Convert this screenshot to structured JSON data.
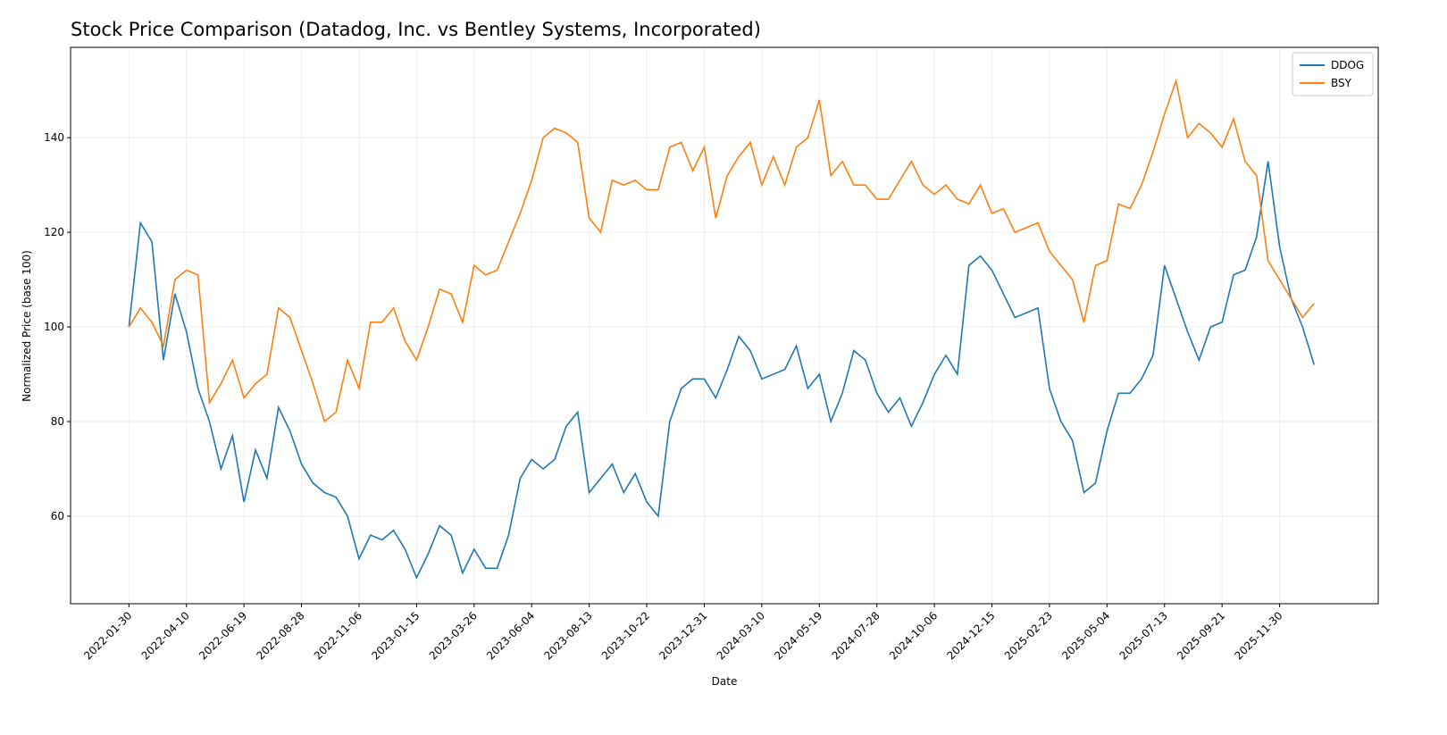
{
  "chart_data": {
    "type": "line",
    "title": "Stock Price Comparison (Datadog, Inc. vs Bentley Systems, Incorporated)",
    "x_label": "Date",
    "y_label": "Normalized Price (base 100)",
    "x": [
      "2022-01-30",
      "2022-02-13",
      "2022-02-27",
      "2022-03-13",
      "2022-03-27",
      "2022-04-10",
      "2022-04-24",
      "2022-05-08",
      "2022-05-22",
      "2022-06-05",
      "2022-06-19",
      "2022-07-03",
      "2022-07-17",
      "2022-07-31",
      "2022-08-14",
      "2022-08-28",
      "2022-09-11",
      "2022-09-25",
      "2022-10-09",
      "2022-10-23",
      "2022-11-06",
      "2022-11-20",
      "2022-12-04",
      "2022-12-18",
      "2023-01-01",
      "2023-01-15",
      "2023-01-29",
      "2023-02-12",
      "2023-02-26",
      "2023-03-12",
      "2023-03-26",
      "2023-04-09",
      "2023-04-23",
      "2023-05-07",
      "2023-05-21",
      "2023-06-04",
      "2023-06-18",
      "2023-07-02",
      "2023-07-16",
      "2023-07-30",
      "2023-08-13",
      "2023-08-27",
      "2023-09-10",
      "2023-09-24",
      "2023-10-08",
      "2023-10-22",
      "2023-11-05",
      "2023-11-19",
      "2023-12-03",
      "2023-12-17",
      "2023-12-31",
      "2024-01-14",
      "2024-01-28",
      "2024-02-11",
      "2024-02-25",
      "2024-03-10",
      "2024-03-24",
      "2024-04-07",
      "2024-04-21",
      "2024-05-05",
      "2024-05-19",
      "2024-06-02",
      "2024-06-16",
      "2024-06-30",
      "2024-07-14",
      "2024-07-28",
      "2024-08-11",
      "2024-08-25",
      "2024-09-08",
      "2024-09-22",
      "2024-10-06",
      "2024-10-20",
      "2024-11-03",
      "2024-11-17",
      "2024-12-01",
      "2024-12-15",
      "2024-12-29",
      "2025-01-12",
      "2025-01-26",
      "2025-02-09",
      "2025-02-23",
      "2025-03-09",
      "2025-03-23",
      "2025-04-06",
      "2025-04-20",
      "2025-05-04",
      "2025-05-18",
      "2025-06-01",
      "2025-06-15",
      "2025-06-29",
      "2025-07-13",
      "2025-07-27",
      "2025-08-10",
      "2025-08-24",
      "2025-09-07",
      "2025-09-21",
      "2025-10-05",
      "2025-10-19",
      "2025-11-02",
      "2025-11-16",
      "2025-11-30",
      "2025-12-14",
      "2025-12-28",
      "2026-01-11"
    ],
    "series": [
      {
        "name": "DDOG",
        "color": "#1f77b4",
        "values": [
          100,
          122,
          118,
          93,
          107,
          99,
          87,
          80,
          70,
          77,
          63,
          74,
          68,
          83,
          78,
          71,
          67,
          65,
          64,
          60,
          51,
          56,
          55,
          57,
          53,
          47,
          52,
          58,
          56,
          48,
          53,
          49,
          49,
          56,
          68,
          72,
          70,
          72,
          79,
          82,
          65,
          68,
          71,
          65,
          69,
          63,
          60,
          80,
          87,
          89,
          89,
          85,
          91,
          98,
          95,
          89,
          90,
          91,
          96,
          87,
          90,
          80,
          86,
          95,
          93,
          86,
          82,
          85,
          79,
          84,
          90,
          94,
          90,
          113,
          115,
          112,
          107,
          102,
          103,
          104,
          87,
          80,
          76,
          65,
          67,
          78,
          86,
          86,
          89,
          94,
          113,
          106,
          99,
          93,
          100,
          101,
          111,
          112,
          119,
          135,
          117,
          106,
          100,
          92
        ]
      },
      {
        "name": "BSY",
        "color": "#ff7f0e",
        "values": [
          100,
          104,
          101,
          96,
          110,
          112,
          111,
          84,
          88,
          93,
          85,
          88,
          90,
          104,
          102,
          95,
          88,
          80,
          82,
          93,
          87,
          101,
          101,
          104,
          97,
          93,
          100,
          108,
          107,
          101,
          113,
          111,
          112,
          118,
          124,
          131,
          140,
          142,
          141,
          139,
          123,
          120,
          131,
          130,
          131,
          129,
          129,
          138,
          139,
          133,
          138,
          123,
          132,
          136,
          139,
          130,
          136,
          130,
          138,
          140,
          148,
          132,
          135,
          130,
          130,
          127,
          127,
          131,
          135,
          130,
          128,
          130,
          127,
          126,
          130,
          124,
          125,
          120,
          121,
          122,
          116,
          113,
          110,
          101,
          113,
          114,
          126,
          125,
          130,
          137,
          145,
          152,
          140,
          143,
          141,
          138,
          144,
          135,
          132,
          114,
          110,
          106,
          102,
          105
        ]
      }
    ],
    "xlim": [
      "2021-11-20",
      "2026-03-30"
    ],
    "xticks": [
      "2022-01-30",
      "2022-04-10",
      "2022-06-19",
      "2022-08-28",
      "2022-11-06",
      "2023-01-15",
      "2023-03-26",
      "2023-06-04",
      "2023-08-13",
      "2023-10-22",
      "2023-12-31",
      "2024-03-10",
      "2024-05-19",
      "2024-07-28",
      "2024-10-06",
      "2024-12-15",
      "2025-02-23",
      "2025-05-04",
      "2025-07-13",
      "2025-09-21",
      "2025-11-30"
    ],
    "ylim": [
      41.5,
      159.1
    ],
    "yticks": [
      60,
      80,
      100,
      120,
      140
    ],
    "grid": true,
    "legend": "upper right"
  }
}
